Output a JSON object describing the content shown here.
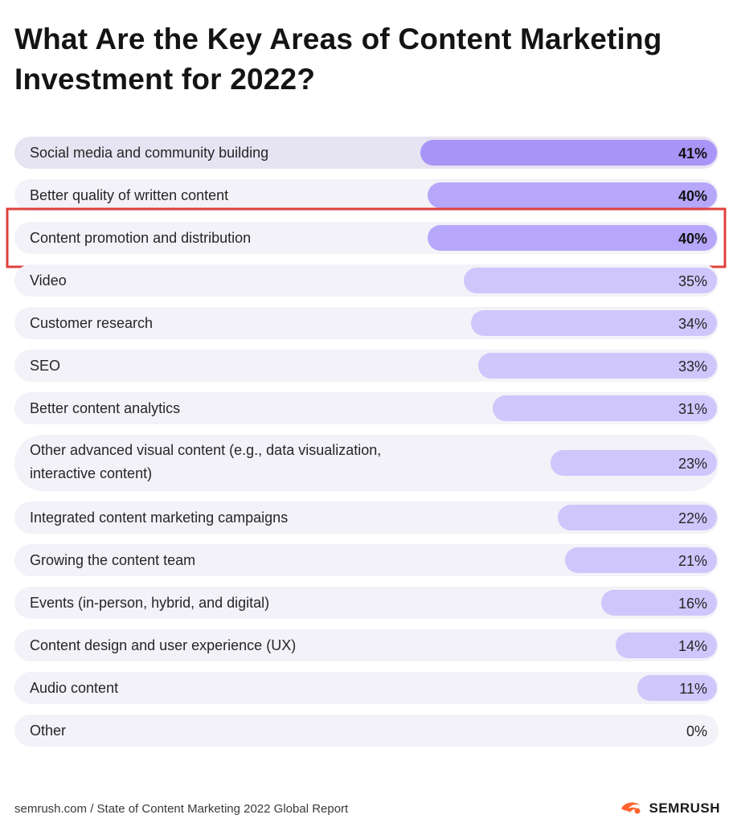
{
  "title": "What Are the Key Areas of Content Marketing Investment for 2022?",
  "footer": {
    "source": "semrush.com / State of Content Marketing 2022 Global Report",
    "logo_text": "SEMRUSH"
  },
  "colors": {
    "bar_top": "#a995f7",
    "bar_dark": "#b6a7fb",
    "bar": "#cfc6fb",
    "row_bg": "#f3f2f8",
    "highlight": "#e0403b"
  },
  "highlighted_category": "Content promotion and distribution",
  "chart_data": {
    "type": "bar",
    "orientation": "horizontal",
    "unit": "%",
    "xlim": [
      0,
      100
    ],
    "categories": [
      "Social media and community building",
      "Better quality of written content",
      "Content promotion and distribution",
      "Video",
      "Customer research",
      "SEO",
      "Better content analytics",
      "Other advanced visual content (e.g., data visualization, interactive content)",
      "Integrated content marketing campaigns",
      "Growing the content team",
      "Events (in-person, hybrid, and digital)",
      "Content design and user experience (UX)",
      "Audio content",
      "Other"
    ],
    "values": [
      41,
      40,
      40,
      35,
      34,
      33,
      31,
      23,
      22,
      21,
      16,
      14,
      11,
      0
    ],
    "value_labels": [
      "41%",
      "40%",
      "40%",
      "35%",
      "34%",
      "33%",
      "31%",
      "23%",
      "22%",
      "21%",
      "16%",
      "14%",
      "11%",
      "0%"
    ]
  }
}
